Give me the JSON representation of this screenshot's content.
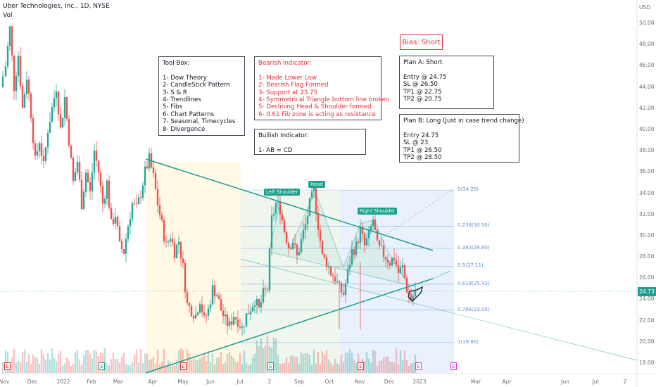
{
  "header": {
    "symbol_line": "Uber Technologies, Inc., 1D, NYSE",
    "volume_label": "Vol"
  },
  "bias": "Bias: Short",
  "toolbox": {
    "title": "Tool Box:",
    "items": [
      "1- Dow Theory",
      "2- CandleStick Pattern",
      "3- S & R",
      "4- Trendlines",
      "5- Fibs",
      "6- Chart Patterns",
      "7- Seasonal, Timecycles",
      "8- Divergence"
    ]
  },
  "bearish": {
    "title": "Bearish Indicator:",
    "items": [
      "1- Made Lower Low",
      "2- Bearish Flag Formed",
      "3- Support at 23.75",
      "4- Symmetrical Triangle bottom line broken",
      "5- Declining Head & Shoulder formed",
      "6- 0.61 Fib zone is acting as resistance"
    ]
  },
  "bullish": {
    "title": "Bullish Indicator:",
    "items": [
      "1- AB = CD"
    ]
  },
  "plan_a": {
    "title": "Plan A: Short",
    "items": [
      "Entry @ 24.75",
      "SL @ 26.50",
      "TP1 @ 22.75",
      "TP2 @ 20.75"
    ]
  },
  "plan_b": {
    "title": "Plan B: Long (Just in case trend change)",
    "items": [
      "Entry 24.75",
      "SL @ 23",
      "TP1 @ 26.50",
      "TP2 @ 28.50"
    ]
  },
  "patterns": {
    "left_shoulder": "Left Shoulder",
    "head": "Head",
    "right_shoulder": "Right Shoulder"
  },
  "fib_labels": [
    "0(34.29)",
    "0.236(30.90)",
    "0.382(28.80)",
    "0.5(27.11)",
    "0.618(25.43)",
    "0.786(23.00)",
    "1(19.93)"
  ],
  "event_marks": [
    "E",
    "E",
    "E",
    "E",
    "E",
    "E",
    "E"
  ],
  "colors": {
    "up": "#26a69a",
    "down": "#ef5350",
    "trendline": "#1f9e8c",
    "fib_line": "#5b8fd6",
    "bias": "#e0303a"
  },
  "chart_data": {
    "type": "candlestick",
    "currency": "USD",
    "last_price": "24.73",
    "y_ticks": [
      "50.00",
      "48.00",
      "46.00",
      "44.00",
      "42.00",
      "40.00",
      "38.00",
      "36.00",
      "34.00",
      "32.00",
      "30.00",
      "28.00",
      "26.00",
      "24.00",
      "22.00",
      "20.00",
      "18.00"
    ],
    "ylim": [
      17.2,
      51
    ],
    "x_ticks": [
      "Nov",
      "Dec",
      "2022",
      "Feb",
      "Mar",
      "Apr",
      "May",
      "Jun",
      "Jul",
      "2",
      "Sep",
      "Oct",
      "Nov",
      "Dec",
      "2023",
      "Mar",
      "Apr",
      "Jun",
      "Jul",
      "2"
    ],
    "fib_levels": [
      34.29,
      30.9,
      28.8,
      27.11,
      25.43,
      23.0,
      19.93
    ],
    "price_path": [
      [
        0,
        44
      ],
      [
        8,
        46
      ],
      [
        14,
        49.5
      ],
      [
        20,
        44
      ],
      [
        26,
        47
      ],
      [
        32,
        42
      ],
      [
        38,
        45
      ],
      [
        44,
        41.5
      ],
      [
        50,
        37
      ],
      [
        56,
        39
      ],
      [
        62,
        36.5
      ],
      [
        68,
        40
      ],
      [
        74,
        42
      ],
      [
        80,
        44
      ],
      [
        86,
        40
      ],
      [
        92,
        43
      ],
      [
        98,
        39
      ],
      [
        104,
        35
      ],
      [
        110,
        37
      ],
      [
        116,
        33
      ],
      [
        122,
        36
      ],
      [
        128,
        34
      ],
      [
        134,
        38
      ],
      [
        140,
        36
      ],
      [
        146,
        33
      ],
      [
        152,
        35
      ],
      [
        158,
        31
      ],
      [
        164,
        32
      ],
      [
        170,
        29
      ],
      [
        176,
        28.5
      ],
      [
        182,
        31
      ],
      [
        188,
        33
      ],
      [
        194,
        32.5
      ],
      [
        200,
        34
      ],
      [
        206,
        36
      ],
      [
        212,
        37.2
      ],
      [
        218,
        35.5
      ],
      [
        224,
        33
      ],
      [
        230,
        31
      ],
      [
        236,
        29
      ],
      [
        242,
        30
      ],
      [
        248,
        28.5
      ],
      [
        254,
        29.5
      ],
      [
        260,
        27
      ],
      [
        266,
        23.5
      ],
      [
        272,
        23
      ],
      [
        278,
        22.5
      ],
      [
        284,
        24
      ],
      [
        290,
        22
      ],
      [
        296,
        23
      ],
      [
        302,
        25
      ],
      [
        308,
        24.5
      ],
      [
        314,
        23
      ],
      [
        320,
        22
      ],
      [
        326,
        21.5
      ],
      [
        332,
        22.5
      ],
      [
        338,
        22
      ],
      [
        344,
        21.3
      ],
      [
        350,
        22.5
      ],
      [
        356,
        23.2
      ],
      [
        362,
        24
      ],
      [
        368,
        23
      ],
      [
        374,
        24.5
      ],
      [
        380,
        25
      ],
      [
        386,
        31.5
      ],
      [
        392,
        33
      ],
      [
        398,
        32.5
      ],
      [
        404,
        30.5
      ],
      [
        410,
        29
      ],
      [
        416,
        29.5
      ],
      [
        422,
        28
      ],
      [
        428,
        29.5
      ],
      [
        434,
        31
      ],
      [
        440,
        33
      ],
      [
        446,
        34.2
      ],
      [
        452,
        31
      ],
      [
        458,
        28
      ],
      [
        464,
        27.5
      ],
      [
        470,
        26.5
      ],
      [
        476,
        26
      ],
      [
        482,
        25
      ],
      [
        488,
        24.5
      ],
      [
        494,
        26.5
      ],
      [
        500,
        28.5
      ],
      [
        506,
        29
      ],
      [
        512,
        30.5
      ],
      [
        518,
        29
      ],
      [
        524,
        30
      ],
      [
        530,
        31.5
      ],
      [
        536,
        29
      ],
      [
        542,
        28.5
      ],
      [
        548,
        28
      ],
      [
        554,
        27.5
      ],
      [
        560,
        28
      ],
      [
        566,
        26.5
      ],
      [
        572,
        27
      ],
      [
        578,
        25
      ],
      [
        584,
        24
      ],
      [
        590,
        24.6
      ]
    ]
  }
}
